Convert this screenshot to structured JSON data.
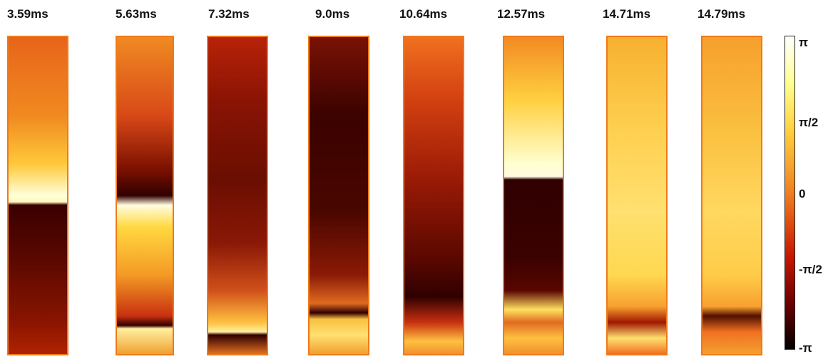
{
  "panels": [
    {
      "label": "3.59ms"
    },
    {
      "label": "5.63ms"
    },
    {
      "label": "7.32ms"
    },
    {
      "label": "9.0ms"
    },
    {
      "label": "10.64ms"
    },
    {
      "label": "12.57ms"
    },
    {
      "label": "14.71ms"
    },
    {
      "label": "14.79ms"
    }
  ],
  "colorbar": {
    "ticks": [
      "π",
      "π/2",
      "0",
      "-π/2",
      "-π"
    ]
  }
}
